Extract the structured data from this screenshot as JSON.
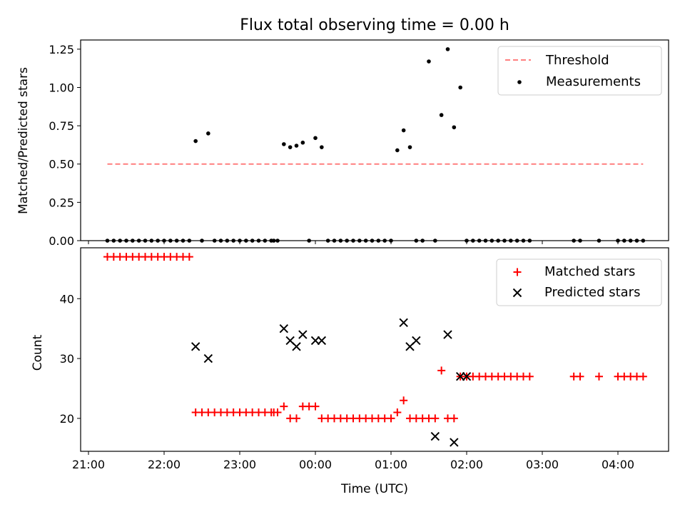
{
  "chart_data": [
    {
      "type": "scatter",
      "title": "Flux total observing time = 0.00 h",
      "xlabel": "",
      "ylabel": "Matched/Predicted stars",
      "ylim": [
        0.0,
        1.31
      ],
      "yticks": [
        "0.00",
        "0.25",
        "0.50",
        "0.75",
        "1.00",
        "1.25"
      ],
      "ytick_values": [
        0.0,
        0.25,
        0.5,
        0.75,
        1.0,
        1.25
      ],
      "legend_position": "top-right",
      "series": [
        {
          "name": "Threshold",
          "style": "dashed-line",
          "color": "#ff7f7f",
          "x": [
            "21:15",
            "04:20"
          ],
          "y": [
            0.5,
            0.5
          ]
        },
        {
          "name": "Measurements",
          "style": "dot",
          "color": "#000000",
          "x": [
            "21:15",
            "21:20",
            "21:25",
            "21:30",
            "21:35",
            "21:40",
            "21:45",
            "21:50",
            "21:55",
            "22:00",
            "22:05",
            "22:10",
            "22:15",
            "22:20",
            "22:25",
            "22:30",
            "22:35",
            "22:40",
            "22:45",
            "22:50",
            "22:55",
            "23:00",
            "23:05",
            "23:10",
            "23:15",
            "23:20",
            "23:25",
            "23:27",
            "23:30",
            "23:35",
            "23:40",
            "23:45",
            "23:50",
            "23:55",
            "00:00",
            "00:05",
            "00:10",
            "00:15",
            "00:20",
            "00:25",
            "00:30",
            "00:35",
            "00:40",
            "00:45",
            "00:50",
            "00:55",
            "01:00",
            "01:05",
            "01:10",
            "01:15",
            "01:20",
            "01:25",
            "01:30",
            "01:35",
            "01:40",
            "01:45",
            "01:50",
            "01:55",
            "02:00",
            "02:05",
            "02:10",
            "02:15",
            "02:20",
            "02:25",
            "02:30",
            "02:35",
            "02:40",
            "02:45",
            "02:50",
            "03:25",
            "03:30",
            "03:45",
            "04:00",
            "04:05",
            "04:10",
            "04:15",
            "04:20"
          ],
          "y": [
            0,
            0,
            0,
            0,
            0,
            0,
            0,
            0,
            0,
            0,
            0,
            0,
            0,
            0,
            0.65,
            0,
            0.7,
            0,
            0,
            0,
            0,
            0,
            0,
            0,
            0,
            0,
            0,
            0,
            0,
            0.63,
            0.61,
            0.62,
            0.64,
            0,
            0.67,
            0.61,
            0,
            0,
            0,
            0,
            0,
            0,
            0,
            0,
            0,
            0,
            0,
            0.59,
            0.72,
            0.61,
            0,
            0,
            1.17,
            0,
            0.82,
            1.25,
            0.74,
            1.0,
            0,
            0,
            0,
            0,
            0,
            0,
            0,
            0,
            0,
            0,
            0,
            0,
            0,
            0,
            0,
            0,
            0,
            0,
            0
          ]
        }
      ]
    },
    {
      "type": "scatter",
      "title": "",
      "xlabel": "Time (UTC)",
      "ylabel": "Count",
      "xlim": [
        "21:00",
        "04:40"
      ],
      "xticks": [
        "21:00",
        "22:00",
        "23:00",
        "00:00",
        "01:00",
        "02:00",
        "03:00",
        "04:00"
      ],
      "ylim": [
        14.5,
        48.5
      ],
      "yticks": [
        "20",
        "30",
        "40"
      ],
      "ytick_values": [
        20,
        30,
        40
      ],
      "legend_position": "top-right",
      "series": [
        {
          "name": "Matched stars",
          "style": "plus",
          "color": "#ff0000",
          "x": [
            "21:15",
            "21:20",
            "21:25",
            "21:30",
            "21:35",
            "21:40",
            "21:45",
            "21:50",
            "21:55",
            "22:00",
            "22:05",
            "22:10",
            "22:15",
            "22:20",
            "22:25",
            "22:30",
            "22:35",
            "22:40",
            "22:45",
            "22:50",
            "22:55",
            "23:00",
            "23:05",
            "23:10",
            "23:15",
            "23:20",
            "23:25",
            "23:27",
            "23:30",
            "23:35",
            "23:40",
            "23:45",
            "23:50",
            "23:55",
            "00:00",
            "00:05",
            "00:10",
            "00:15",
            "00:20",
            "00:25",
            "00:30",
            "00:35",
            "00:40",
            "00:45",
            "00:50",
            "00:55",
            "01:00",
            "01:05",
            "01:10",
            "01:15",
            "01:20",
            "01:25",
            "01:30",
            "01:35",
            "01:40",
            "01:45",
            "01:50",
            "01:55",
            "02:00",
            "02:05",
            "02:10",
            "02:15",
            "02:20",
            "02:25",
            "02:30",
            "02:35",
            "02:40",
            "02:45",
            "02:50",
            "03:25",
            "03:30",
            "03:45",
            "04:00",
            "04:05",
            "04:10",
            "04:15",
            "04:20"
          ],
          "y": [
            47,
            47,
            47,
            47,
            47,
            47,
            47,
            47,
            47,
            47,
            47,
            47,
            47,
            47,
            21,
            21,
            21,
            21,
            21,
            21,
            21,
            21,
            21,
            21,
            21,
            21,
            21,
            21,
            21,
            22,
            20,
            20,
            22,
            22,
            22,
            20,
            20,
            20,
            20,
            20,
            20,
            20,
            20,
            20,
            20,
            20,
            20,
            21,
            23,
            20,
            20,
            20,
            20,
            20,
            28,
            20,
            20,
            27,
            27,
            27,
            27,
            27,
            27,
            27,
            27,
            27,
            27,
            27,
            27,
            27,
            27,
            27,
            27,
            27,
            27,
            27,
            27
          ]
        },
        {
          "name": "Predicted stars",
          "style": "x",
          "color": "#000000",
          "x": [
            "22:25",
            "22:35",
            "23:35",
            "23:40",
            "23:45",
            "23:50",
            "00:00",
            "00:05",
            "01:10",
            "01:15",
            "01:20",
            "01:35",
            "01:45",
            "01:50",
            "01:55",
            "02:00"
          ],
          "y": [
            32,
            30,
            35,
            33,
            32,
            34,
            33,
            33,
            36,
            32,
            33,
            17,
            34,
            16,
            27,
            27
          ]
        }
      ]
    }
  ]
}
